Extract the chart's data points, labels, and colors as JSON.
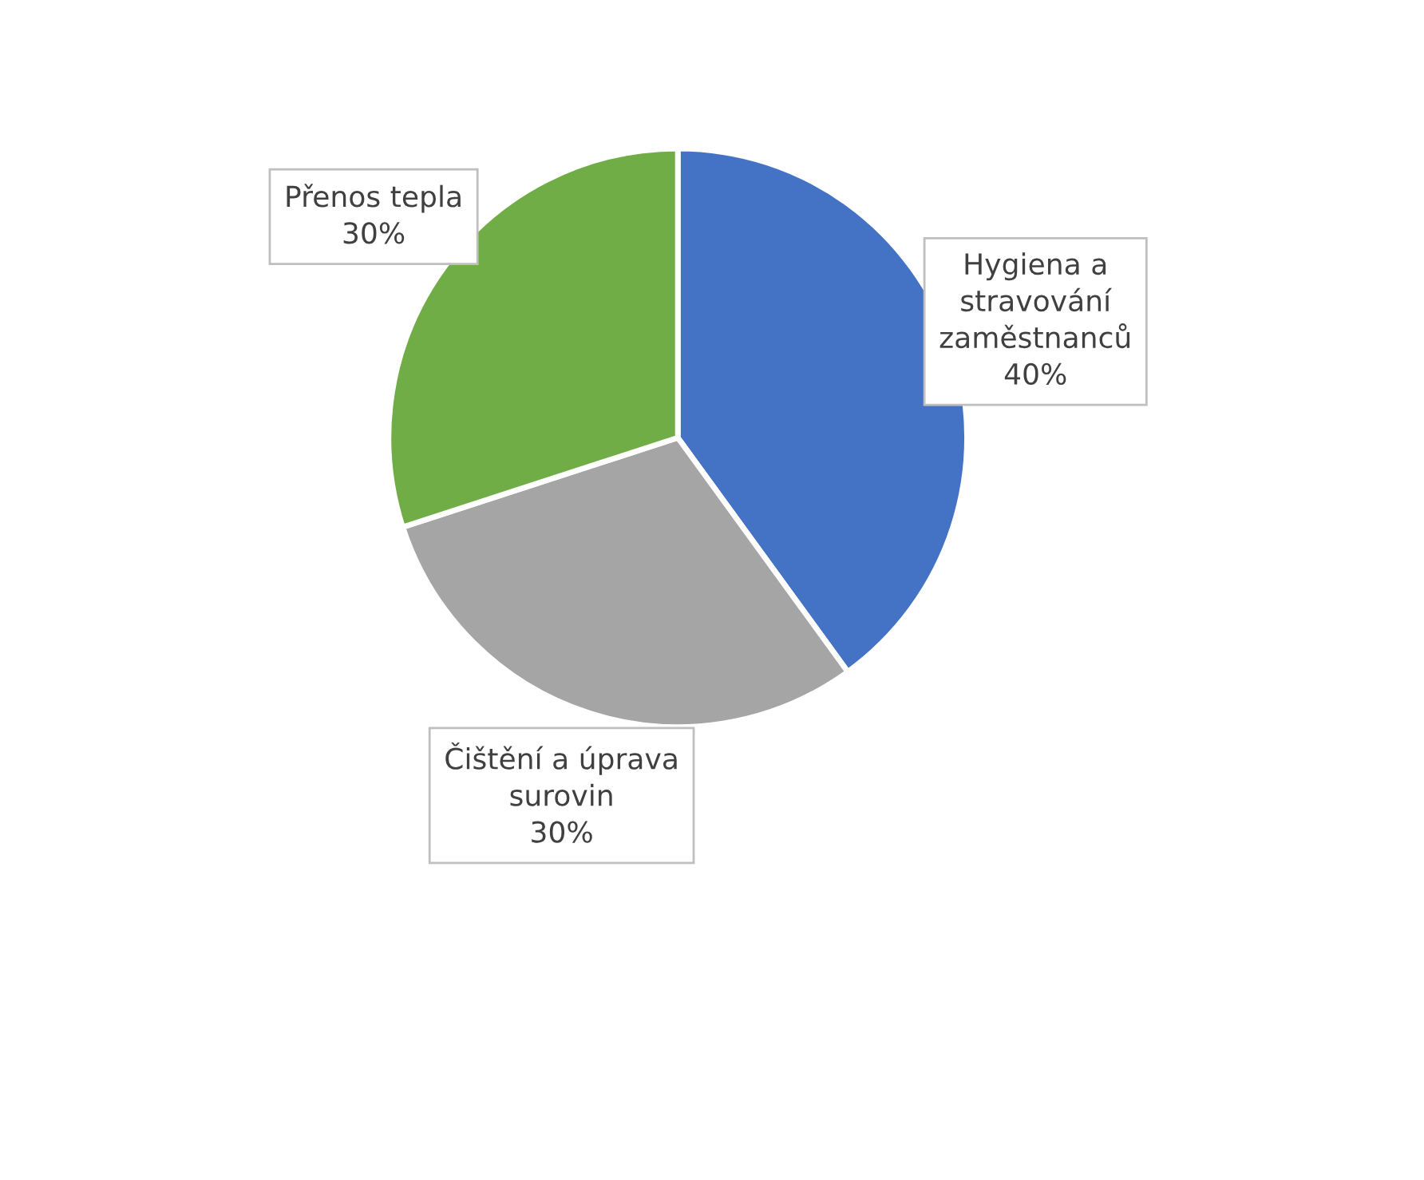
{
  "chart_data": {
    "type": "pie",
    "categories": [
      "Hygiena a\nstravování\nzaměstnanců",
      "Čištění a úprava\nsurovin",
      "Přenos tepla"
    ],
    "values": [
      40,
      30,
      30
    ],
    "colors": [
      "#4472c4",
      "#a5a5a5",
      "#70ad47"
    ],
    "value_labels": [
      "40%",
      "30%",
      "30%"
    ]
  }
}
